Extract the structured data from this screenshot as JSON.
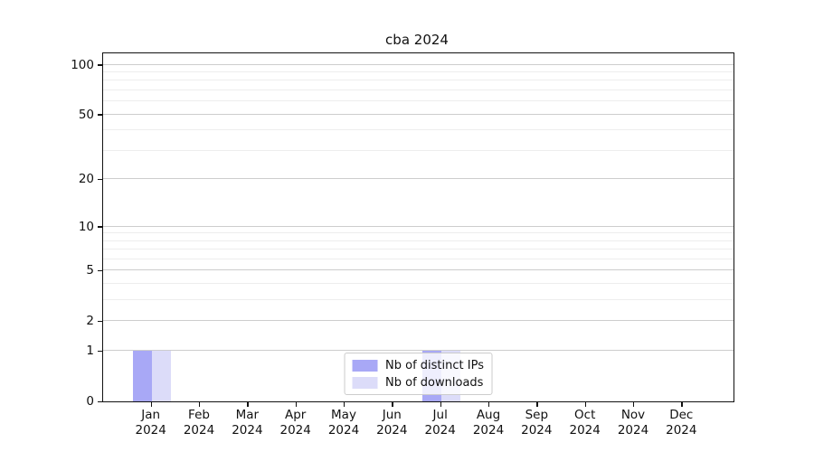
{
  "chart_data": {
    "type": "bar",
    "title": "cba 2024",
    "x": [
      "Jan 2024",
      "Feb 2024",
      "Mar 2024",
      "Apr 2024",
      "May 2024",
      "Jun 2024",
      "Jul 2024",
      "Aug 2024",
      "Sep 2024",
      "Oct 2024",
      "Nov 2024",
      "Dec 2024"
    ],
    "x_tick_months": [
      "Jan",
      "Feb",
      "Mar",
      "Apr",
      "May",
      "Jun",
      "Jul",
      "Aug",
      "Sep",
      "Oct",
      "Nov",
      "Dec"
    ],
    "x_tick_year": "2024",
    "series": [
      {
        "name": "Nb of distinct IPs",
        "color": "#a8a8f6",
        "values": [
          1,
          0,
          0,
          0,
          0,
          0,
          1,
          0,
          0,
          0,
          0,
          0
        ]
      },
      {
        "name": "Nb of downloads",
        "color": "#dcdcf9",
        "values": [
          1,
          0,
          0,
          0,
          0,
          0,
          1,
          0,
          0,
          0,
          0,
          0
        ]
      }
    ],
    "yscale": "log1p",
    "ylim": [
      0,
      117
    ],
    "y_ticks": [
      0,
      1,
      2,
      5,
      10,
      20,
      50,
      100
    ],
    "y_minor_gridlines": [
      3,
      4,
      6,
      7,
      8,
      9,
      30,
      40,
      60,
      70,
      80,
      90
    ],
    "grid": "horizontal",
    "legend_position": "lower center"
  },
  "colors": {
    "grid_major": "#cdcdcd",
    "grid_minor": "#ededed",
    "spine": "#111111",
    "text": "#111111",
    "legend_border": "#cccccc",
    "background": "#ffffff"
  }
}
